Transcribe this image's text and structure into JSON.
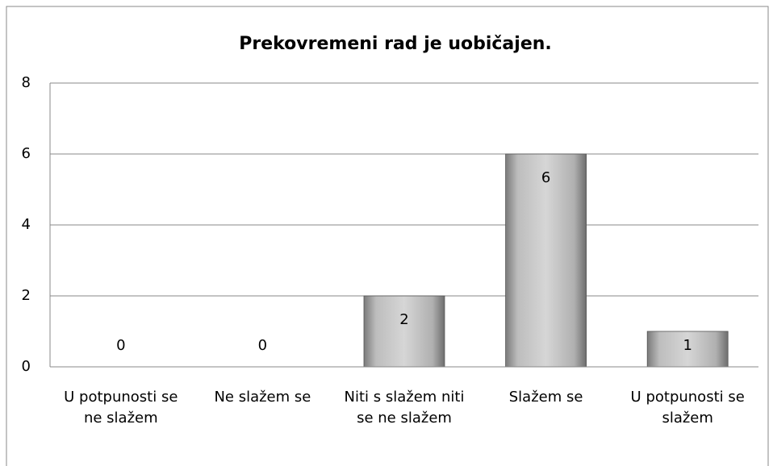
{
  "chart_data": {
    "type": "bar",
    "title": "Prekovremeni rad je uobičajen.",
    "categories": [
      "U potpunosti se ne slažem",
      "Ne slažem se",
      "Niti s slažem niti se ne slažem",
      "Slažem se",
      "U potpunosti se slažem"
    ],
    "values": [
      0,
      0,
      2,
      6,
      1
    ],
    "color": "#bdbdbd",
    "ylim": [
      0,
      8
    ],
    "yticks": [
      0,
      2,
      4,
      6,
      8
    ],
    "grid": true,
    "data_labels": true
  }
}
